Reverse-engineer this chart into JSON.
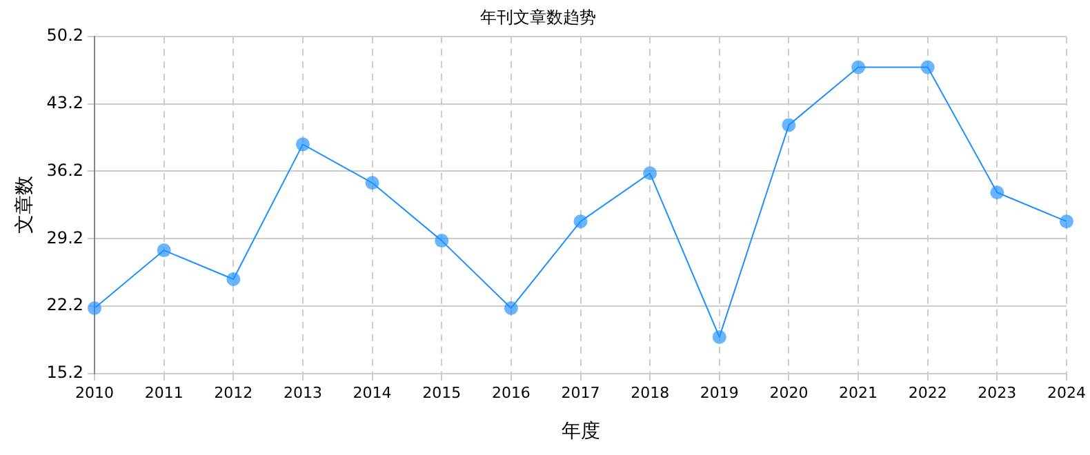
{
  "chart_data": {
    "type": "line",
    "title": "年刊文章数趋势",
    "xlabel": "年度",
    "ylabel": "文章数",
    "categories": [
      "2010",
      "2011",
      "2012",
      "2013",
      "2014",
      "2015",
      "2016",
      "2017",
      "2018",
      "2019",
      "2020",
      "2021",
      "2022",
      "2023",
      "2024"
    ],
    "series": [
      {
        "color": "#1e90ff",
        "values": [
          22,
          28,
          25,
          39,
          35,
          29,
          22,
          31,
          36,
          19,
          41,
          47,
          47,
          34,
          31
        ]
      }
    ],
    "ylim": [
      15.2,
      50.2
    ],
    "yticks": [
      15.2,
      22.2,
      29.2,
      36.2,
      43.2,
      50.2
    ],
    "grid": true,
    "marker": "circle",
    "line_style": "solid",
    "legend": false
  }
}
